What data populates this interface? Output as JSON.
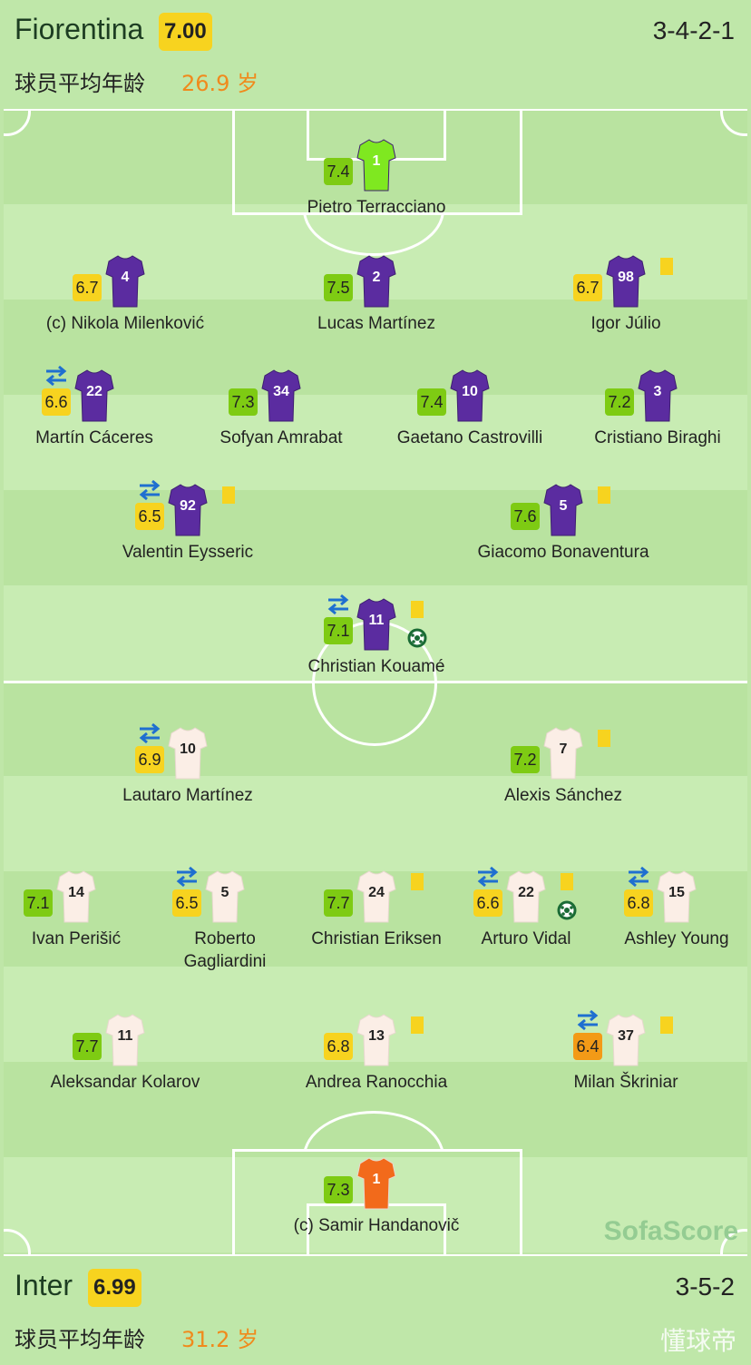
{
  "home": {
    "name": "Fiorentina",
    "rating": "7.00",
    "formation": "3-4-2-1",
    "avg_label": "球员平均年龄",
    "avg_value": "26.9 岁"
  },
  "away": {
    "name": "Inter",
    "rating": "6.99",
    "formation": "3-5-2",
    "avg_label": "球员平均年龄",
    "avg_value": "31.2 岁"
  },
  "watermark": "SofaScore",
  "watermark2": "懂球帝",
  "colors": {
    "rating_green": "#7ecb13",
    "rating_yellow": "#f7d31f",
    "rating_orange": "#f39a17",
    "home_shirt": "#5b2ca0",
    "home_gk": "#7fe820",
    "away_shirt": "#fbeee6",
    "away_gk": "#f26a1b"
  },
  "home_players": [
    {
      "number": "1",
      "name": "Pietro Terracciano",
      "rating": "7.4",
      "color": "green",
      "gk": true,
      "sub": false,
      "card": false,
      "goal": false
    },
    {
      "number": "4",
      "name": "(c) Nikola Milenković",
      "rating": "6.7",
      "color": "yellow",
      "gk": false,
      "sub": false,
      "card": false,
      "goal": false
    },
    {
      "number": "2",
      "name": "Lucas Martínez",
      "rating": "7.5",
      "color": "green",
      "gk": false,
      "sub": false,
      "card": false,
      "goal": false
    },
    {
      "number": "98",
      "name": "Igor Júlio",
      "rating": "6.7",
      "color": "yellow",
      "gk": false,
      "sub": false,
      "card": true,
      "goal": false
    },
    {
      "number": "22",
      "name": "Martín Cáceres",
      "rating": "6.6",
      "color": "yellow",
      "gk": false,
      "sub": true,
      "card": false,
      "goal": false
    },
    {
      "number": "34",
      "name": "Sofyan Amrabat",
      "rating": "7.3",
      "color": "green",
      "gk": false,
      "sub": false,
      "card": false,
      "goal": false
    },
    {
      "number": "10",
      "name": "Gaetano Castrovilli",
      "rating": "7.4",
      "color": "green",
      "gk": false,
      "sub": false,
      "card": false,
      "goal": false
    },
    {
      "number": "3",
      "name": "Cristiano Biraghi",
      "rating": "7.2",
      "color": "green",
      "gk": false,
      "sub": false,
      "card": false,
      "goal": false
    },
    {
      "number": "92",
      "name": "Valentin Eysseric",
      "rating": "6.5",
      "color": "yellow",
      "gk": false,
      "sub": true,
      "card": true,
      "goal": false
    },
    {
      "number": "5",
      "name": "Giacomo Bonaventura",
      "rating": "7.6",
      "color": "green",
      "gk": false,
      "sub": false,
      "card": true,
      "goal": false
    },
    {
      "number": "11",
      "name": "Christian Kouamé",
      "rating": "7.1",
      "color": "green",
      "gk": false,
      "sub": true,
      "card": true,
      "goal": true
    }
  ],
  "away_players": [
    {
      "number": "10",
      "name": "Lautaro Martínez",
      "rating": "6.9",
      "color": "yellow",
      "gk": false,
      "sub": true,
      "card": false,
      "goal": false
    },
    {
      "number": "7",
      "name": "Alexis Sánchez",
      "rating": "7.2",
      "color": "green",
      "gk": false,
      "sub": false,
      "card": true,
      "goal": false
    },
    {
      "number": "14",
      "name": "Ivan Perišić",
      "rating": "7.1",
      "color": "green",
      "gk": false,
      "sub": false,
      "card": false,
      "goal": false
    },
    {
      "number": "5",
      "name": "Roberto Gagliardini",
      "rating": "6.5",
      "color": "yellow",
      "gk": false,
      "sub": true,
      "card": false,
      "goal": false
    },
    {
      "number": "24",
      "name": "Christian Eriksen",
      "rating": "7.7",
      "color": "green",
      "gk": false,
      "sub": false,
      "card": true,
      "goal": false
    },
    {
      "number": "22",
      "name": "Arturo Vidal",
      "rating": "6.6",
      "color": "yellow",
      "gk": false,
      "sub": true,
      "card": true,
      "goal": true
    },
    {
      "number": "15",
      "name": "Ashley Young",
      "rating": "6.8",
      "color": "yellow",
      "gk": false,
      "sub": true,
      "card": false,
      "goal": false
    },
    {
      "number": "11",
      "name": "Aleksandar Kolarov",
      "rating": "7.7",
      "color": "green",
      "gk": false,
      "sub": false,
      "card": false,
      "goal": false
    },
    {
      "number": "13",
      "name": "Andrea Ranocchia",
      "rating": "6.8",
      "color": "yellow",
      "gk": false,
      "sub": false,
      "card": true,
      "goal": false
    },
    {
      "number": "37",
      "name": "Milan Škriniar",
      "rating": "6.4",
      "color": "orange",
      "gk": false,
      "sub": true,
      "card": true,
      "goal": false
    },
    {
      "number": "1",
      "name": "(c) Samir Handanovič",
      "rating": "7.3",
      "color": "green",
      "gk": true,
      "sub": false,
      "card": false,
      "goal": false
    }
  ]
}
